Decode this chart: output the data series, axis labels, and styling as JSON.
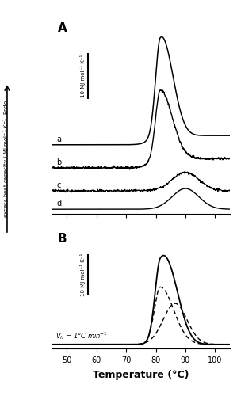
{
  "temp_range": [
    45,
    105
  ],
  "temp_step": 0.1,
  "panel_A_label": "A",
  "panel_B_label": "B",
  "scale_bar_label": "10 MJ mol⁻¹ K⁻¹",
  "vh_text": "$V_h$ = 1°C min⁻¹",
  "xlabel": "Temperature (°C)",
  "ylabel_top": "excess heat capacity / MJ mol⁻¹ K⁻¹  Endo",
  "line_labels": [
    "a",
    "b",
    "c",
    "d"
  ],
  "line_color": "#000000",
  "background_color": "#ffffff",
  "xticks": [
    50,
    60,
    70,
    80,
    90,
    100
  ],
  "noise_amplitude": 0.12,
  "temp_min": 45,
  "temp_max": 105
}
